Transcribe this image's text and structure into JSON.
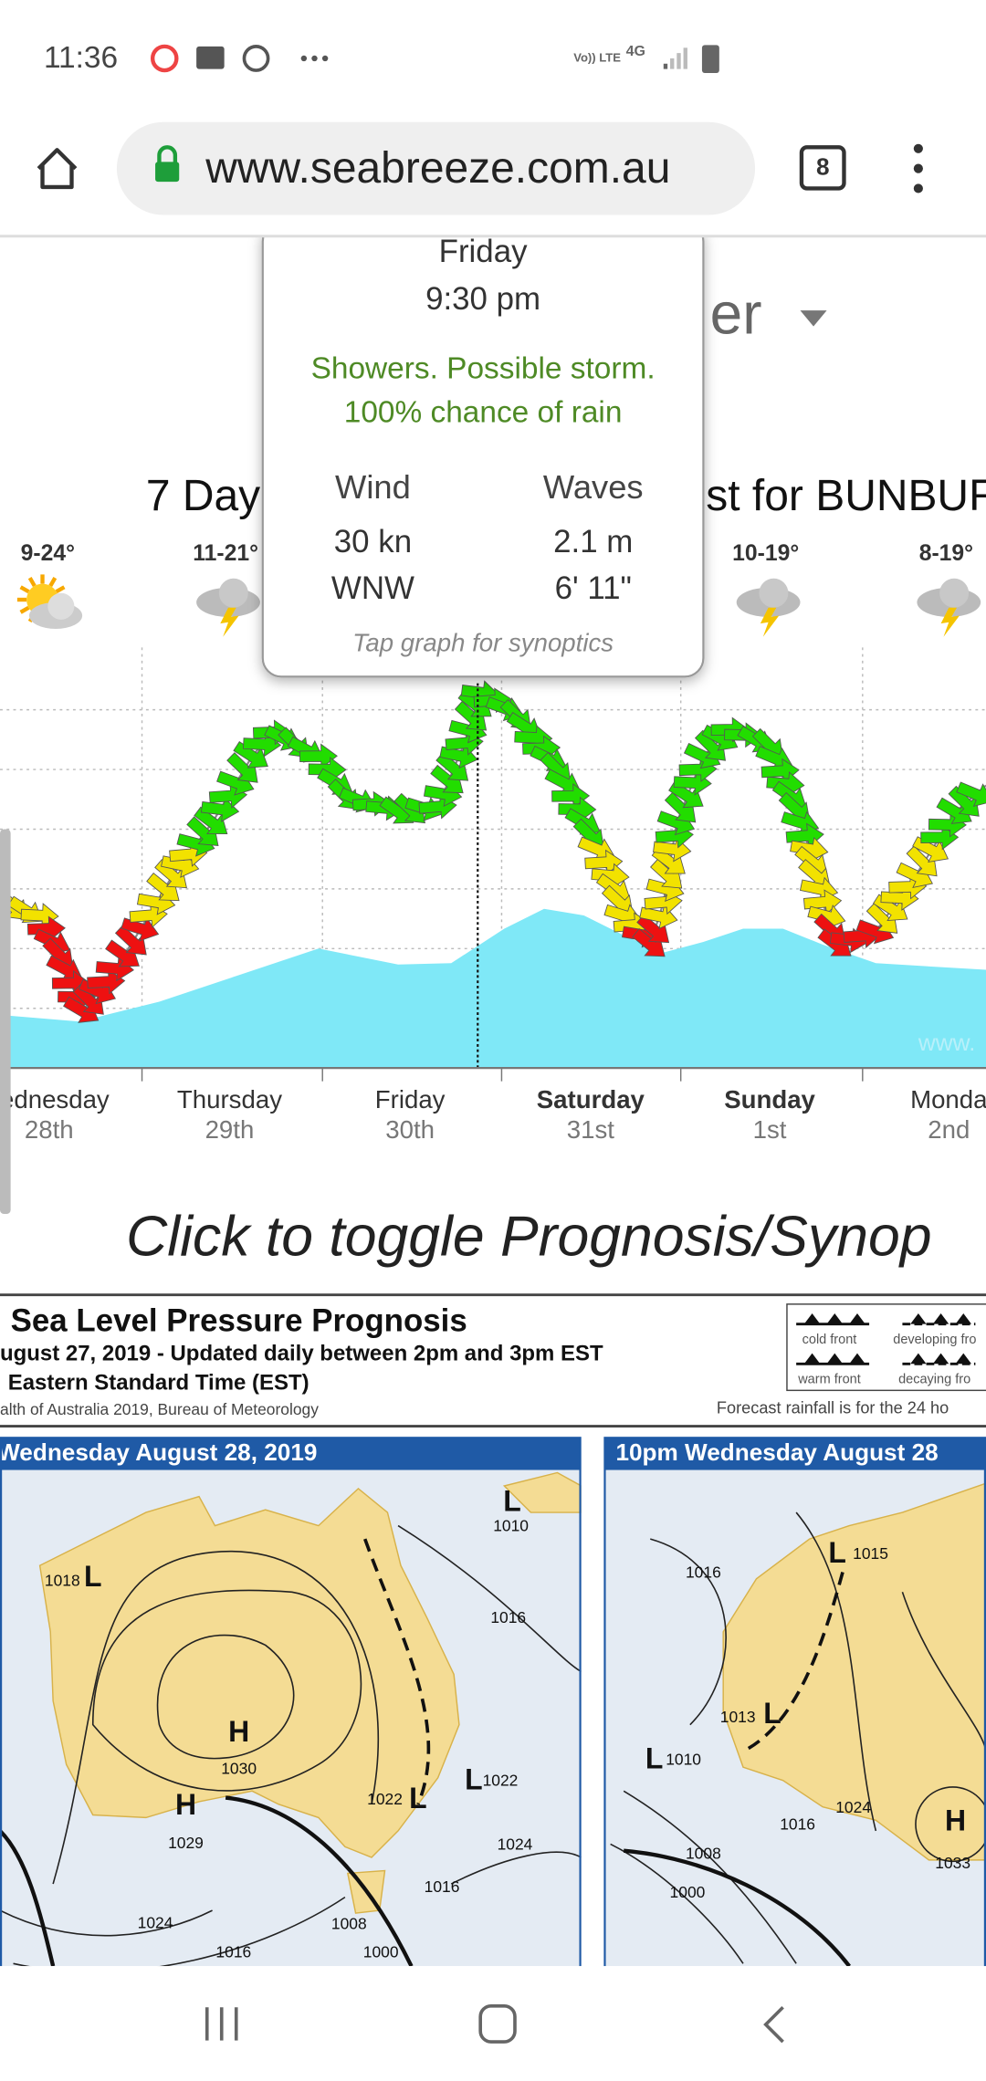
{
  "status_bar": {
    "time": "11:36",
    "volte": "Vo)) LTE",
    "network": "4G"
  },
  "browser": {
    "url": "www.seabreeze.com.au",
    "tab_count": "8"
  },
  "page": {
    "heading_behind": "er",
    "heading_left": "7 Day",
    "heading_right": "st for BUNBUR",
    "temps": [
      "9-24°",
      "11-21°",
      "10-19°",
      "8-19°"
    ],
    "days": [
      {
        "name": "ednesday",
        "date": "28th"
      },
      {
        "name": "Thursday",
        "date": "29th"
      },
      {
        "name": "Friday",
        "date": "30th"
      },
      {
        "name": "Saturday",
        "date": "31st"
      },
      {
        "name": "Sunday",
        "date": "1st"
      },
      {
        "name": "Monda",
        "date": "2nd"
      }
    ],
    "watermark": "www.",
    "toggle": "Click to toggle Prognosis/Synop"
  },
  "tooltip": {
    "day": "Friday",
    "time": "9:30 pm",
    "summary": "Showers. Possible storm.",
    "rain": "100% chance of rain",
    "wind_header": "Wind",
    "waves_header": "Waves",
    "wind_speed": "30 kn",
    "wave_height": "2.1 m",
    "wind_direction": "WNW",
    "wave_height_ft": "6' 11\"",
    "hint": "Tap graph for synoptics"
  },
  "synoptic": {
    "title": "Sea Level Pressure Prognosis",
    "issued": "ugust 27, 2019  -  Updated daily between 2pm and 3pm EST",
    "timezone": "Eastern Standard Time (EST)",
    "copyright": "alth of Australia 2019, Bureau of Meteorology",
    "rainfall_note": "Forecast rainfall is for the 24 ho",
    "legend": [
      "cold front",
      "developing fro",
      "warm front",
      "decaying fro"
    ],
    "maps": [
      {
        "title": "Wednesday August 28, 2019",
        "labels": [
          "L",
          "1018",
          "1016",
          "H",
          "1030",
          "H",
          "1029",
          "1022",
          "L",
          "L",
          "1022",
          "1024",
          "1024",
          "1008",
          "1016",
          "1016",
          "1000",
          "L",
          "1010"
        ]
      },
      {
        "title": "10pm Wednesday August 28",
        "labels": [
          "1016",
          "L",
          "1015",
          "L",
          "1013",
          "L",
          "1010",
          "1016",
          "1024",
          "H",
          "1033",
          "1008",
          "1000"
        ]
      }
    ]
  }
}
